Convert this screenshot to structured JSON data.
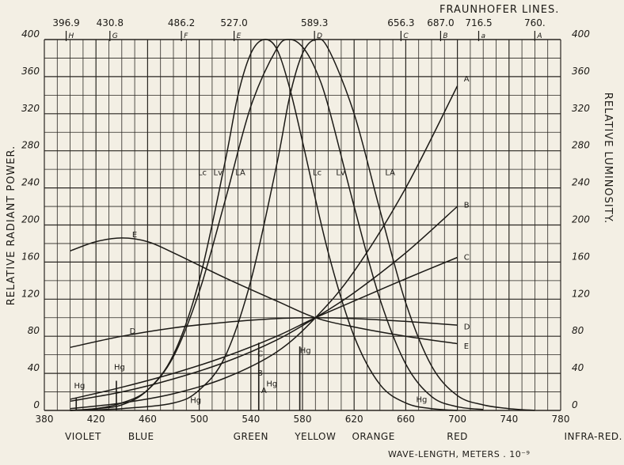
{
  "chart_data": {
    "type": "line",
    "title": "FRAUNHOFER LINES.",
    "xlabel": "WAVE-LENGTH, METERS . 10⁻⁹",
    "ylabel_left": "RELATIVE RADIANT POWER.",
    "ylabel_right": "RELATIVE LUMINOSITY.",
    "xlim": [
      380,
      780
    ],
    "ylim": [
      0,
      400
    ],
    "x_ticks": [
      380,
      420,
      460,
      500,
      540,
      580,
      620,
      660,
      700,
      740,
      780
    ],
    "y_ticks": [
      0,
      40,
      80,
      120,
      160,
      200,
      240,
      280,
      320,
      360,
      400
    ],
    "y_tick_labels_left": [
      "0",
      "40",
      "80",
      "120",
      "160",
      "200",
      "240",
      "280",
      "320",
      "360",
      "400"
    ],
    "y_tick_labels_right": [
      "0",
      "40",
      "80",
      "120",
      "160",
      "200",
      "240",
      "280",
      "320",
      "360",
      "400"
    ],
    "grid": true,
    "color_bands": [
      {
        "label": "VIOLET",
        "x": 410
      },
      {
        "label": "BLUE",
        "x": 455
      },
      {
        "label": "GREEN",
        "x": 540
      },
      {
        "label": "YELLOW",
        "x": 590
      },
      {
        "label": "ORANGE",
        "x": 635
      },
      {
        "label": "RED",
        "x": 700
      },
      {
        "label": "INFRA-RED.",
        "x": 780
      }
    ],
    "fraunhofer_lines": [
      {
        "wavelength": "396.9",
        "letter": "H",
        "x": 396.9
      },
      {
        "wavelength": "430.8",
        "letter": "G",
        "x": 430.8
      },
      {
        "wavelength": "486.2",
        "letter": "F",
        "x": 486.2
      },
      {
        "wavelength": "527.0",
        "letter": "E",
        "x": 527.0
      },
      {
        "wavelength": "589.3",
        "letter": "D",
        "x": 589.3
      },
      {
        "wavelength": "656.3",
        "letter": "C",
        "x": 656.3
      },
      {
        "wavelength": "687.0",
        "letter": "B",
        "x": 687.0
      },
      {
        "wavelength": "716.5",
        "letter": "a",
        "x": 716.5
      },
      {
        "wavelength": "760.",
        "letter": "A",
        "x": 760.0
      }
    ],
    "series": [
      {
        "name": "A",
        "x": [
          400,
          440,
          480,
          520,
          560,
          590,
          620,
          660,
          700
        ],
        "y": [
          2,
          8,
          18,
          35,
          63,
          100,
          150,
          240,
          350
        ]
      },
      {
        "name": "B",
        "x": [
          400,
          440,
          480,
          520,
          560,
          590,
          620,
          660,
          700
        ],
        "y": [
          10,
          20,
          34,
          52,
          76,
          100,
          127,
          170,
          220
        ]
      },
      {
        "name": "C",
        "x": [
          400,
          440,
          480,
          520,
          560,
          590,
          620,
          660,
          700
        ],
        "y": [
          12,
          25,
          40,
          58,
          80,
          100,
          118,
          142,
          165
        ]
      },
      {
        "name": "D",
        "x": [
          400,
          440,
          480,
          520,
          560,
          590,
          620,
          660,
          700
        ],
        "y": [
          68,
          80,
          89,
          95,
          99,
          100,
          99,
          96,
          92
        ]
      },
      {
        "name": "E",
        "x": [
          400,
          420,
          440,
          460,
          480,
          520,
          560,
          590,
          620,
          660,
          700
        ],
        "y": [
          172,
          182,
          186,
          182,
          170,
          143,
          118,
          100,
          90,
          80,
          72
        ]
      },
      {
        "name": "Lc",
        "x": [
          400,
          420,
          440,
          460,
          480,
          500,
          520,
          530,
          540,
          550,
          560,
          570,
          580,
          600,
          620,
          640,
          660,
          680,
          700
        ],
        "y": [
          0,
          2,
          6,
          22,
          60,
          140,
          268,
          340,
          385,
          400,
          390,
          348,
          290,
          170,
          80,
          28,
          8,
          2,
          0
        ]
      },
      {
        "name": "Lv",
        "x": [
          400,
          420,
          440,
          460,
          480,
          500,
          520,
          540,
          560,
          570,
          580,
          590,
          600,
          620,
          640,
          660,
          680,
          700,
          720
        ],
        "y": [
          0,
          2,
          8,
          22,
          58,
          128,
          226,
          328,
          390,
          400,
          392,
          368,
          328,
          220,
          120,
          50,
          15,
          4,
          1
        ]
      },
      {
        "name": "LA",
        "x": [
          400,
          440,
          480,
          500,
          520,
          540,
          560,
          570,
          580,
          590,
          600,
          620,
          640,
          660,
          680,
          700,
          720,
          740,
          760
        ],
        "y": [
          0,
          2,
          8,
          22,
          58,
          140,
          265,
          338,
          385,
          400,
          390,
          320,
          216,
          116,
          48,
          16,
          6,
          2,
          0
        ]
      }
    ],
    "curve_labels": [
      {
        "text": "A",
        "x": 705,
        "y": 358
      },
      {
        "text": "B",
        "x": 705,
        "y": 222
      },
      {
        "text": "C",
        "x": 705,
        "y": 166
      },
      {
        "text": "D",
        "x": 705,
        "y": 91
      },
      {
        "text": "E",
        "x": 705,
        "y": 70
      },
      {
        "text": "A",
        "x": 548,
        "y": 22
      },
      {
        "text": "B",
        "x": 545,
        "y": 41
      },
      {
        "text": "C",
        "x": 545,
        "y": 62
      },
      {
        "text": "D",
        "x": 446,
        "y": 86
      },
      {
        "text": "E",
        "x": 448,
        "y": 190
      },
      {
        "text": "Lc",
        "x": 499,
        "y": 257
      },
      {
        "text": "Lv",
        "x": 511,
        "y": 257
      },
      {
        "text": "LA",
        "x": 528,
        "y": 257
      },
      {
        "text": "Lc",
        "x": 588,
        "y": 257
      },
      {
        "text": "Lv",
        "x": 606,
        "y": 257
      },
      {
        "text": "LA",
        "x": 644,
        "y": 257
      }
    ],
    "mercury_lines": [
      {
        "label": "Hg",
        "x": 404.7,
        "height": 14,
        "lx": 403,
        "ly": 24
      },
      {
        "label": "Hg",
        "x": 435.8,
        "height": 32,
        "lx": 434,
        "ly": 44
      },
      {
        "label": "Hg",
        "x": 546.1,
        "height": 73,
        "lx": 552,
        "ly": 26
      },
      {
        "label": "Hg",
        "x": 577.9,
        "height": 69,
        "lx": 578,
        "ly": 62
      },
      {
        "label": "Hg",
        "x": 491.6,
        "height": 0,
        "lx": 493,
        "ly": 8
      },
      {
        "label": "Hg",
        "x": 690.7,
        "height": 0,
        "lx": 668,
        "ly": 9
      }
    ]
  }
}
